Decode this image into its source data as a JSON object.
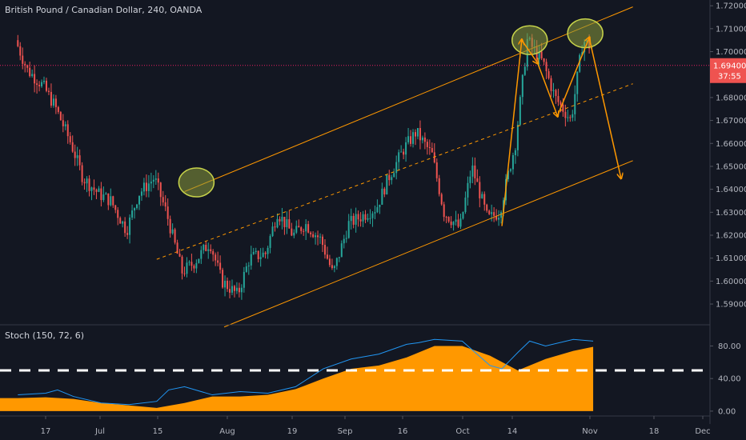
{
  "header": {
    "title": "British Pound / Canadian Dollar, 240, OANDA"
  },
  "indicator": {
    "title": "Stoch (150, 72, 6)"
  },
  "colors": {
    "background": "#131722",
    "up": "#26a69a",
    "down": "#ef5350",
    "channel": "#ff9800",
    "stoch_k": "#2196f3",
    "stoch_fill": "#ff9800",
    "price_line": "#e91e63"
  },
  "price_badge": {
    "value": "1.69400",
    "countdown": "37:55"
  },
  "chart_data": [
    {
      "type": "line",
      "title": "British Pound / Canadian Dollar, 240, OANDA",
      "ylim": [
        1.5813,
        1.7225
      ],
      "grid": false,
      "y_ticks": [
        "1.72000",
        "1.71000",
        "1.70000",
        "1.69000",
        "1.68000",
        "1.67000",
        "1.66000",
        "1.65000",
        "1.64000",
        "1.63000",
        "1.62000",
        "1.61000",
        "1.60000",
        "1.59000"
      ],
      "x_ticks": [
        "17",
        "Jul",
        "15",
        "Aug",
        "19",
        "Sep",
        "16",
        "Oct",
        "14",
        "Nov",
        "18",
        "Dec"
      ],
      "series": [
        {
          "x": [
            "Jun 10",
            "Jun 13",
            "Jun 17",
            "Jun 20",
            "Jun 24",
            "Jun 27",
            "Jul 1",
            "Jul 4",
            "Jul 8",
            "Jul 11",
            "Jul 15",
            "Jul 18",
            "Jul 22",
            "Jul 25",
            "Jul 29",
            "Aug 1",
            "Aug 5",
            "Aug 8",
            "Aug 12",
            "Aug 15",
            "Aug 19",
            "Aug 22",
            "Aug 26",
            "Aug 29",
            "Sep 2",
            "Sep 5",
            "Sep 9",
            "Sep 12",
            "Sep 16",
            "Sep 19",
            "Sep 23",
            "Sep 26",
            "Sep 30",
            "Oct 3",
            "Oct 7",
            "Oct 10",
            "Oct 14",
            "Oct 17",
            "Oct 21",
            "Oct 24",
            "Oct 28",
            "Oct 31",
            "Nov 2"
          ],
          "values": [
            1.705,
            1.692,
            1.685,
            1.676,
            1.66,
            1.645,
            1.638,
            1.635,
            1.622,
            1.638,
            1.645,
            1.63,
            1.604,
            1.608,
            1.617,
            1.6,
            1.594,
            1.61,
            1.612,
            1.63,
            1.62,
            1.625,
            1.618,
            1.603,
            1.625,
            1.628,
            1.632,
            1.645,
            1.658,
            1.665,
            1.655,
            1.63,
            1.623,
            1.65,
            1.627,
            1.63,
            1.66,
            1.705,
            1.695,
            1.68,
            1.67,
            1.705,
            1.702
          ]
        }
      ],
      "annotations": {
        "upper_channel": {
          "from": [
            "Jul 22",
            1.639
          ],
          "to": [
            "Nov 12",
            1.7195
          ]
        },
        "middle_channel": {
          "from": [
            "Jul 15",
            1.6095
          ],
          "to": [
            "Nov 12",
            1.686
          ]
        },
        "lower_channel": {
          "from": [
            "Aug 1",
            1.58
          ],
          "to": [
            "Nov 12",
            1.6525
          ]
        },
        "horizontal_line": 1.694,
        "highlighted_peaks": [
          [
            "Jul 25",
            1.643
          ],
          [
            "Oct 17",
            1.705
          ],
          [
            "Oct 31",
            1.708
          ]
        ],
        "projection": [
          [
            "Oct 10",
            1.624
          ],
          [
            "Oct 15",
            1.705
          ],
          [
            "Oct 19",
            1.695
          ],
          [
            "Oct 24",
            1.672
          ],
          [
            "Nov 1",
            1.706
          ],
          [
            "Nov 9",
            1.645
          ]
        ]
      }
    },
    {
      "type": "area",
      "title": "Stoch (150, 72, 6)",
      "ylim": [
        -5,
        105
      ],
      "y_ticks": [
        "80.00",
        "40.00",
        "0.00"
      ],
      "reference_line": 50,
      "series": [
        {
          "x": [
            "Jun 10",
            "Jun 17",
            "Jun 24",
            "Jul 1",
            "Jul 8",
            "Jul 15",
            "Jul 22",
            "Jul 29",
            "Aug 5",
            "Aug 12",
            "Aug 19",
            "Aug 26",
            "Sep 2",
            "Sep 9",
            "Sep 16",
            "Sep 23",
            "Sep 30",
            "Oct 7",
            "Oct 14",
            "Oct 21",
            "Oct 28",
            "Nov 2"
          ],
          "values": [
            16,
            17,
            15,
            10,
            7,
            4,
            10,
            18,
            18,
            20,
            27,
            40,
            52,
            56,
            66,
            80,
            80,
            68,
            50,
            64,
            74,
            79
          ]
        },
        {
          "x": [
            "Jun 10",
            "Jun 17",
            "Jun 20",
            "Jun 24",
            "Jul 1",
            "Jul 8",
            "Jul 15",
            "Jul 18",
            "Jul 22",
            "Jul 29",
            "Aug 5",
            "Aug 12",
            "Aug 19",
            "Aug 26",
            "Sep 2",
            "Sep 9",
            "Sep 16",
            "Sep 19",
            "Sep 23",
            "Sep 30",
            "Oct 7",
            "Oct 10",
            "Oct 14",
            "Oct 17",
            "Oct 21",
            "Oct 28",
            "Nov 2"
          ],
          "values": [
            20,
            22,
            26,
            18,
            10,
            8,
            12,
            26,
            30,
            20,
            24,
            22,
            30,
            52,
            64,
            70,
            82,
            84,
            88,
            86,
            56,
            52,
            72,
            86,
            80,
            88,
            86
          ]
        }
      ]
    }
  ]
}
